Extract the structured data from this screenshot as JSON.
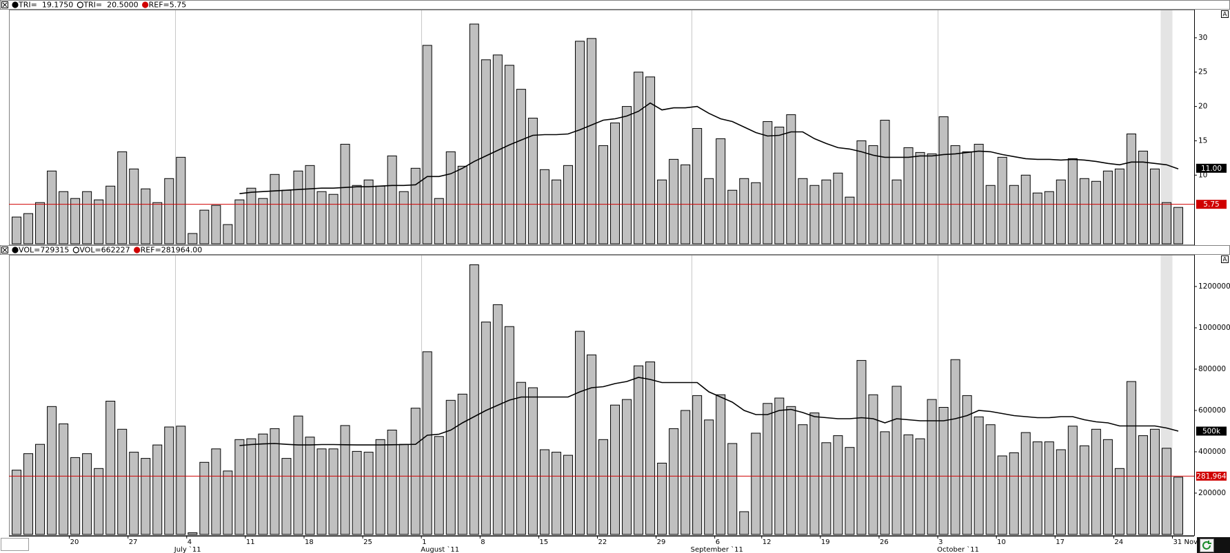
{
  "chart_data": [
    {
      "type": "bar",
      "scale_button": "A",
      "series": [
        {
          "name": "TRI=  19.1750",
          "type": "bar",
          "color": "#c0c0c0",
          "values": [
            3.9,
            4.4,
            6.0,
            10.6,
            7.6,
            6.6,
            7.6,
            6.4,
            8.4,
            13.4,
            10.9,
            8.0,
            6.0,
            9.5,
            12.6,
            1.5,
            4.9,
            5.6,
            2.8,
            6.4,
            8.1,
            6.6,
            10.1,
            7.8,
            10.6,
            11.4,
            7.6,
            7.2,
            14.5,
            8.5,
            9.3,
            8.4,
            12.8,
            7.6,
            11.0,
            28.9,
            6.6,
            13.4,
            11.3,
            32.0,
            26.8,
            27.5,
            26.0,
            22.5,
            18.3,
            10.8,
            9.3,
            11.4,
            29.5,
            29.9,
            14.3,
            17.6,
            20.0,
            25.0,
            24.3,
            9.3,
            12.3,
            11.5,
            16.8,
            9.5,
            15.3,
            7.8,
            9.5,
            8.9,
            17.8,
            17.0,
            18.8,
            9.5,
            8.5,
            9.3,
            10.3,
            6.8,
            15.0,
            14.3,
            18.0,
            9.3,
            14.0,
            13.3,
            13.1,
            18.5,
            14.3,
            13.4,
            14.5,
            8.5,
            12.6,
            8.5,
            10.0,
            7.4,
            7.6,
            9.3,
            12.4,
            9.5,
            9.1,
            10.6,
            10.9,
            16.0,
            13.5,
            10.9,
            6.0,
            5.3
          ]
        },
        {
          "name": "TRI=  20.5000",
          "type": "line",
          "color": "#000000",
          "values": [
            null,
            null,
            null,
            null,
            null,
            null,
            null,
            null,
            null,
            null,
            null,
            null,
            null,
            null,
            null,
            null,
            null,
            null,
            null,
            7.3,
            7.5,
            7.6,
            7.7,
            7.8,
            7.9,
            8.0,
            8.1,
            8.1,
            8.2,
            8.3,
            8.3,
            8.4,
            8.5,
            8.5,
            8.6,
            9.8,
            9.8,
            10.2,
            11.0,
            12.0,
            12.8,
            13.6,
            14.4,
            15.1,
            15.8,
            15.9,
            15.9,
            16.0,
            16.6,
            17.3,
            18.0,
            18.2,
            18.6,
            19.3,
            20.5,
            19.5,
            19.8,
            19.8,
            20.0,
            19.0,
            18.2,
            17.8,
            17.0,
            16.2,
            15.7,
            15.8,
            16.3,
            16.3,
            15.3,
            14.6,
            14.0,
            13.8,
            13.4,
            12.9,
            12.6,
            12.6,
            12.6,
            12.8,
            12.8,
            13.0,
            13.1,
            13.3,
            13.5,
            13.4,
            13.0,
            12.7,
            12.4,
            12.3,
            12.3,
            12.2,
            12.3,
            12.2,
            12.0,
            11.7,
            11.5,
            11.9,
            11.9,
            11.7,
            11.5,
            10.9
          ]
        }
      ],
      "reference": {
        "name": "REF=5.75",
        "value": 5.75,
        "color": "#d00000"
      },
      "last_value": {
        "value": 11,
        "label": "11.00"
      },
      "ylim": [
        0,
        34
      ],
      "yticks": [
        10,
        15,
        20,
        25,
        30
      ]
    },
    {
      "type": "bar",
      "scale_button": "A",
      "series": [
        {
          "name": "VOL=729315",
          "type": "bar",
          "color": "#c0c0c0",
          "values": [
            311000,
            391000,
            436000,
            619000,
            535000,
            372000,
            391000,
            319000,
            645000,
            509000,
            398000,
            368000,
            433000,
            520000,
            524000,
            8000,
            349000,
            414000,
            307000,
            459000,
            463000,
            486000,
            512000,
            368000,
            573000,
            471000,
            414000,
            414000,
            527000,
            402000,
            398000,
            459000,
            505000,
            436000,
            611000,
            884000,
            474000,
            649000,
            679000,
            1305000,
            1028000,
            1112000,
            1006000,
            736000,
            710000,
            410000,
            398000,
            383000,
            983000,
            869000,
            459000,
            626000,
            653000,
            816000,
            835000,
            345000,
            512000,
            600000,
            672000,
            554000,
            676000,
            440000,
            110000,
            490000,
            634000,
            660000,
            619000,
            531000,
            588000,
            444000,
            478000,
            421000,
            842000,
            676000,
            497000,
            717000,
            482000,
            463000,
            653000,
            615000,
            846000,
            672000,
            569000,
            531000,
            380000,
            395000,
            493000,
            448000,
            448000,
            410000,
            524000,
            429000,
            509000,
            459000,
            319000,
            740000,
            478000,
            509000,
            417000,
            277000
          ]
        },
        {
          "name": "VOL=662227",
          "type": "line",
          "color": "#000000",
          "values": [
            null,
            null,
            null,
            null,
            null,
            null,
            null,
            null,
            null,
            null,
            null,
            null,
            null,
            null,
            null,
            null,
            null,
            null,
            null,
            430000,
            435000,
            438000,
            440000,
            436000,
            433000,
            433000,
            435000,
            435000,
            434000,
            433000,
            433000,
            433000,
            434000,
            435000,
            436000,
            480000,
            485000,
            505000,
            540000,
            570000,
            600000,
            625000,
            650000,
            665000,
            665000,
            665000,
            665000,
            665000,
            690000,
            710000,
            715000,
            730000,
            740000,
            760000,
            750000,
            735000,
            735000,
            735000,
            735000,
            690000,
            665000,
            640000,
            600000,
            580000,
            580000,
            600000,
            605000,
            590000,
            570000,
            565000,
            560000,
            560000,
            565000,
            560000,
            540000,
            560000,
            555000,
            550000,
            550000,
            550000,
            560000,
            575000,
            600000,
            595000,
            585000,
            575000,
            570000,
            565000,
            565000,
            570000,
            570000,
            555000,
            545000,
            540000,
            525000,
            525000,
            525000,
            525000,
            515000,
            500000
          ]
        }
      ],
      "reference": {
        "name": "REF=281964.00",
        "value": 281964,
        "value_label": "281,964",
        "color": "#d00000"
      },
      "last_value": {
        "value": 500000,
        "label": "500k"
      },
      "ylim": [
        0,
        1350000
      ],
      "yticks": [
        200000,
        400000,
        600000,
        800000,
        1000000,
        1200000
      ],
      "categories": [
        null,
        null,
        null,
        null,
        null,
        "20",
        null,
        null,
        null,
        null,
        "27",
        null,
        null,
        null,
        null,
        "4",
        null,
        null,
        null,
        null,
        "11",
        null,
        null,
        null,
        null,
        "18",
        null,
        null,
        null,
        null,
        "25",
        null,
        null,
        null,
        null,
        "1",
        null,
        null,
        null,
        null,
        "8",
        null,
        null,
        null,
        null,
        "15",
        null,
        null,
        null,
        null,
        "22",
        null,
        null,
        null,
        null,
        "29",
        null,
        null,
        null,
        null,
        "6",
        null,
        null,
        null,
        "12",
        null,
        null,
        null,
        null,
        "19",
        null,
        null,
        null,
        null,
        "26",
        null,
        null,
        null,
        null,
        "3",
        null,
        null,
        null,
        null,
        "10",
        null,
        null,
        null,
        null,
        "17",
        null,
        null,
        null,
        null,
        "24",
        null,
        null,
        null,
        null,
        "31"
      ],
      "month_labels": [
        null,
        null,
        null,
        null,
        null,
        null,
        null,
        null,
        null,
        null,
        null,
        null,
        null,
        null,
        "July `11",
        null,
        null,
        null,
        null,
        null,
        null,
        null,
        null,
        null,
        null,
        null,
        null,
        null,
        null,
        null,
        null,
        null,
        null,
        null,
        null,
        "August `11",
        null,
        null,
        null,
        null,
        null,
        null,
        null,
        null,
        null,
        null,
        null,
        null,
        null,
        null,
        null,
        null,
        null,
        null,
        null,
        null,
        null,
        null,
        "September `11",
        null,
        null,
        null,
        null,
        null,
        null,
        null,
        null,
        null,
        null,
        null,
        null,
        null,
        null,
        null,
        null,
        null,
        null,
        null,
        null,
        "October `11",
        null,
        null,
        null,
        null,
        null,
        null,
        null,
        null,
        null,
        null,
        null,
        null,
        null,
        null,
        null,
        null,
        null,
        null,
        null,
        null
      ],
      "next_month_label": "Nov"
    }
  ]
}
